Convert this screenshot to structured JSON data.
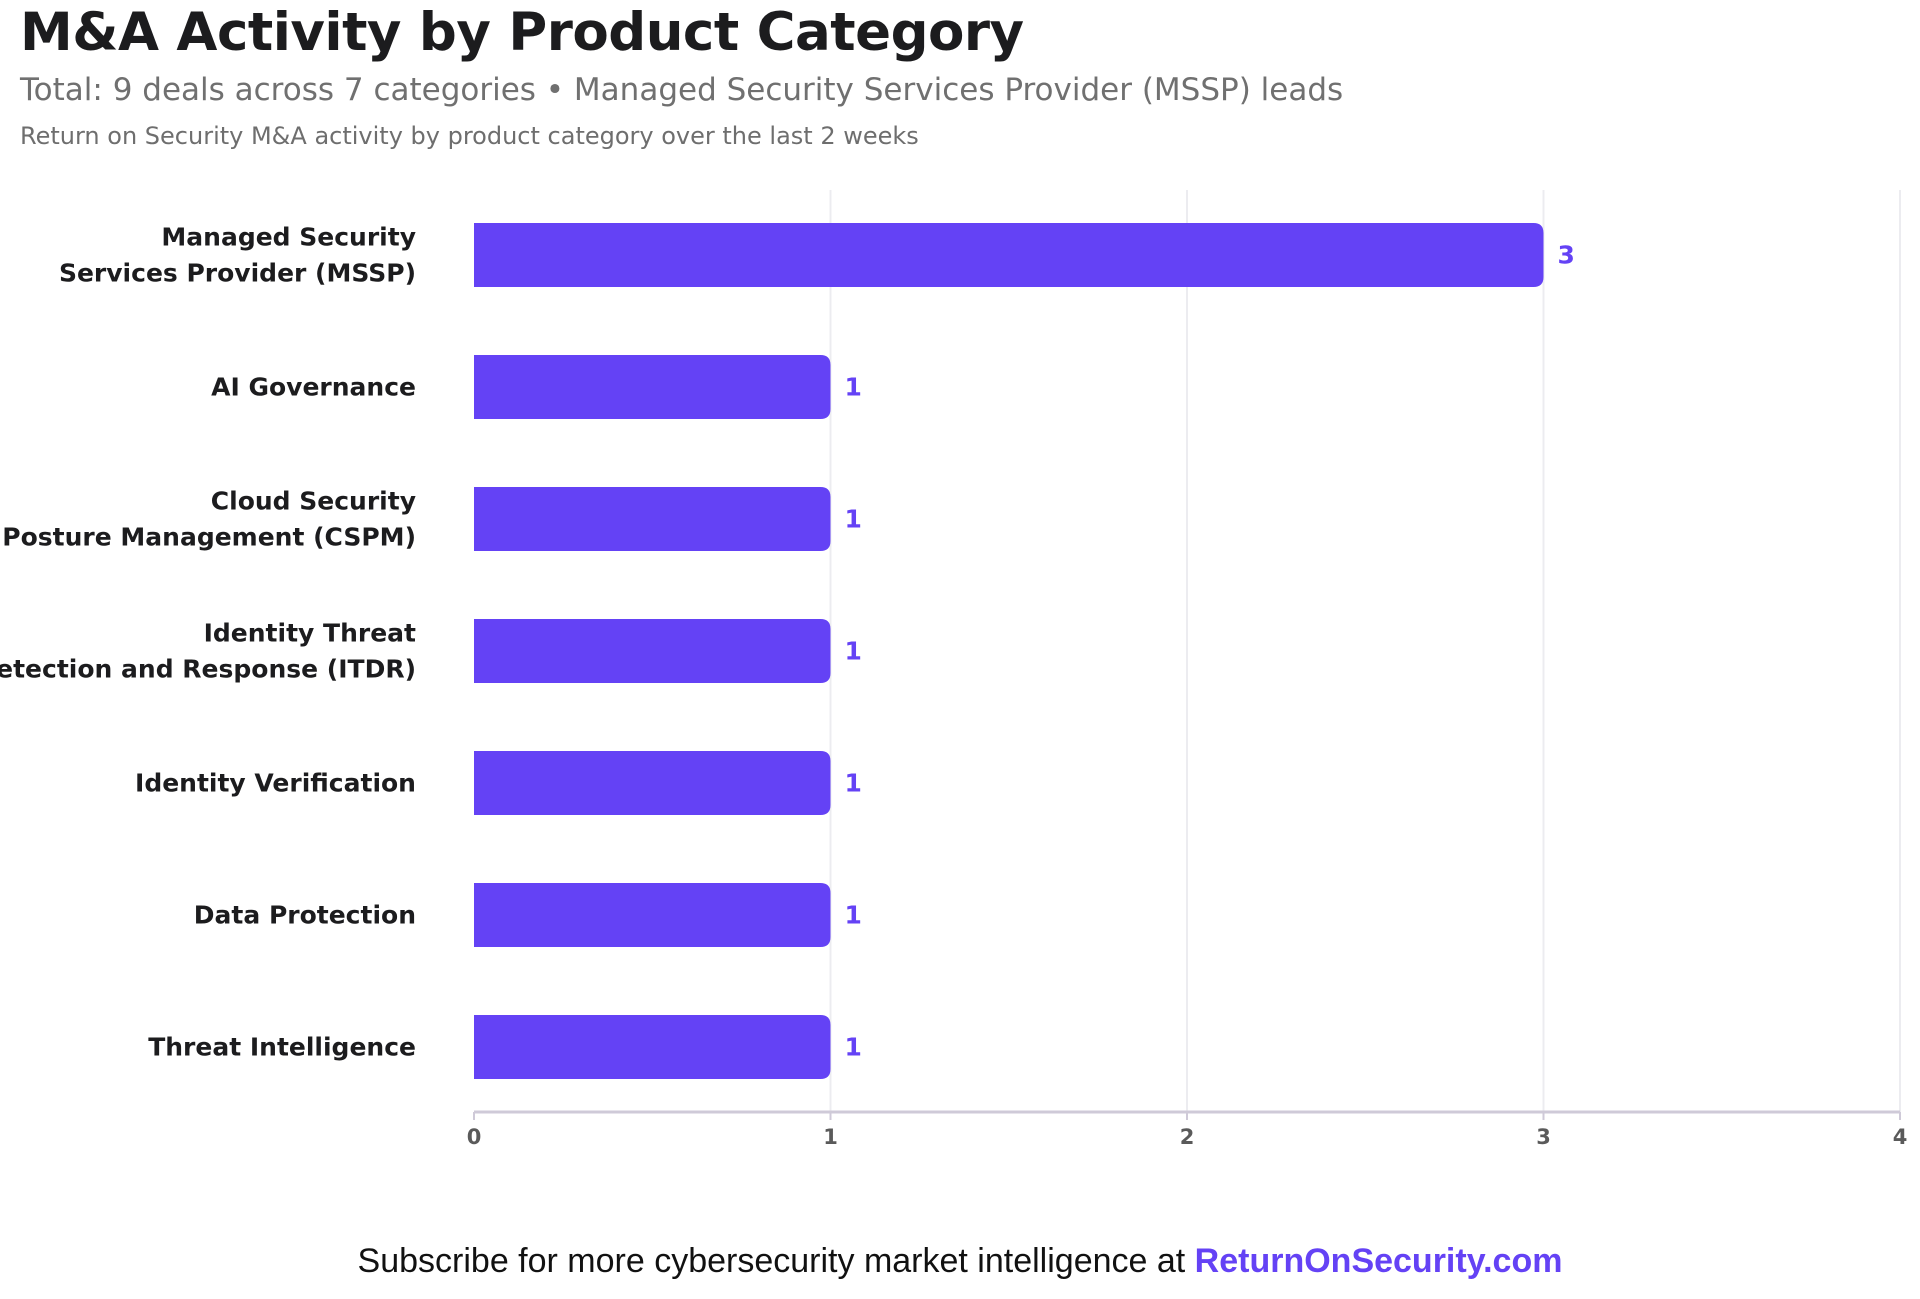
{
  "header": {
    "title": "M&A Activity by Product Category",
    "subtitle": "Total: 9 deals across 7 categories • Managed Security Services Provider (MSSP) leads",
    "caption": "Return on Security M&A activity by product category over the last 2 weeks"
  },
  "footer": {
    "text": "Subscribe for more cybersecurity market intelligence at ",
    "link_text": "ReturnOnSecurity.com"
  },
  "colors": {
    "bar": "#6442f5",
    "value_label": "#6442f5",
    "grid": "#ececf0",
    "axis": "#cfcad8",
    "category_text": "#1c1c1e",
    "tick_text": "#5a5a5a"
  },
  "chart_data": {
    "type": "bar",
    "orientation": "horizontal",
    "title": "M&A Activity by Product Category",
    "categories": [
      [
        "Managed Security",
        "Services Provider (MSSP)"
      ],
      [
        "AI Governance"
      ],
      [
        "Cloud Security",
        "Posture Management (CSPM)"
      ],
      [
        "Identity Threat",
        "Detection and Response (ITDR)"
      ],
      [
        "Identity Verification"
      ],
      [
        "Data Protection"
      ],
      [
        "Threat Intelligence"
      ]
    ],
    "values": [
      3,
      1,
      1,
      1,
      1,
      1,
      1
    ],
    "xlim": [
      0,
      4
    ],
    "xticks": [
      0,
      1,
      2,
      3,
      4
    ],
    "grid": true,
    "data_labels": true
  }
}
